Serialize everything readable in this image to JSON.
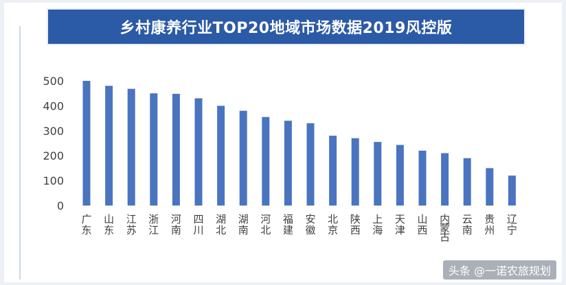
{
  "title": "乡村康养行业TOP20地域市场数据2019风控版",
  "watermark": "头条 @一诺农旅规划",
  "colors": {
    "bar": "#4a74c0",
    "title_bg": "#2b5aa7",
    "axis_text": "#404040"
  },
  "chart_data": {
    "type": "bar",
    "categories": [
      "广东",
      "山东",
      "江苏",
      "浙江",
      "河南",
      "四川",
      "湖北",
      "湖南",
      "河北",
      "福建",
      "安徽",
      "北京",
      "陕西",
      "上海",
      "天津",
      "山西",
      "内蒙古",
      "云南",
      "贵州",
      "辽宁"
    ],
    "values": [
      500,
      480,
      468,
      450,
      448,
      430,
      400,
      380,
      355,
      340,
      330,
      280,
      270,
      255,
      243,
      220,
      210,
      190,
      150,
      120
    ],
    "yticks": [
      0,
      100,
      200,
      300,
      400,
      500
    ],
    "ylim": [
      0,
      500
    ],
    "grid": false,
    "legend": false
  }
}
